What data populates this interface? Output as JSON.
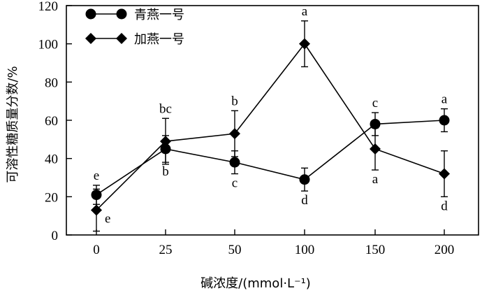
{
  "chart_data": {
    "type": "line",
    "categories": [
      "0",
      "25",
      "50",
      "100",
      "150",
      "200"
    ],
    "xlabel": "碱浓度/(mmol·L⁻¹)",
    "ylabel": "可溶性糖质量分数/%",
    "ylim": [
      0,
      120
    ],
    "yticks": [
      "0",
      "20",
      "40",
      "60",
      "80",
      "100",
      "120"
    ],
    "legend_position": "top-left",
    "series": [
      {
        "name": "青燕一号",
        "marker": "circle",
        "values": [
          21,
          45,
          38,
          29,
          58,
          60
        ],
        "errors": [
          5,
          7,
          6,
          6,
          6,
          6
        ],
        "letters": [
          "e",
          "b",
          "c",
          "d",
          "c",
          "a"
        ],
        "letter_pos": [
          "above",
          "below",
          "below",
          "below",
          "above",
          "above"
        ]
      },
      {
        "name": "加燕一号",
        "marker": "diamond",
        "values": [
          13,
          49,
          53,
          100,
          45,
          32
        ],
        "errors": [
          11,
          12,
          12,
          12,
          11,
          12
        ],
        "letters": [
          "e",
          "bc",
          "b",
          "a",
          "a",
          "d"
        ],
        "letter_pos": [
          "right",
          "above",
          "above",
          "above",
          "below",
          "below"
        ]
      }
    ]
  }
}
